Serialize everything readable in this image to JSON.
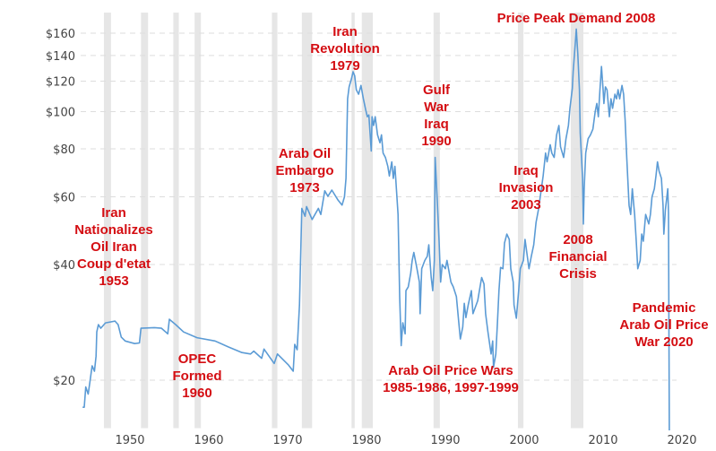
{
  "chart_data": {
    "type": "line",
    "title": "",
    "xlabel": "",
    "ylabel": "",
    "y_scale": "log",
    "xlim": [
      1943,
      2023
    ],
    "ylim": [
      15,
      181
    ],
    "grid": {
      "y": true,
      "x": false,
      "style": "dashed"
    },
    "x_ticks": [
      1950,
      1960,
      1970,
      1980,
      1990,
      2000,
      2010,
      2020
    ],
    "x_tick_labels": [
      "1950",
      "1960",
      "1970",
      "1980",
      "1990",
      "2000",
      "2010",
      "2020"
    ],
    "y_ticks": [
      20,
      40,
      60,
      80,
      100,
      120,
      140,
      160
    ],
    "y_tick_labels": [
      "$20",
      "$40",
      "$60",
      "$80",
      "$100",
      "$120",
      "$140",
      "$160"
    ],
    "colors": {
      "line": "#5b9bd5",
      "recession": "#e6e6e6",
      "annotation": "#d40d12",
      "grid": "#dddddd"
    },
    "recession_bands": [
      [
        1946.7,
        1947.6
      ],
      [
        1951.4,
        1952.3
      ],
      [
        1955.5,
        1956.2
      ],
      [
        1958.2,
        1959.0
      ],
      [
        1968.0,
        1968.7
      ],
      [
        1971.8,
        1973.1
      ],
      [
        1978.1,
        1978.5
      ],
      [
        1979.4,
        1980.8
      ],
      [
        1988.5,
        1989.3
      ],
      [
        1999.2,
        1999.9
      ],
      [
        2005.9,
        2007.5
      ]
    ],
    "series": [
      {
        "x": [
          1944.0,
          1944.2,
          1944.4,
          1944.7,
          1944.9,
          1945.2,
          1945.5,
          1945.7,
          1945.8,
          1946.0,
          1946.3,
          1946.9,
          1948.1,
          1948.5,
          1948.9,
          1949.4,
          1950.6,
          1951.2,
          1951.4,
          1953.1,
          1954.0,
          1954.8,
          1955.0,
          1955.8,
          1956.8,
          1958.5,
          1960.8,
          1962.5,
          1964.2,
          1965.3,
          1965.7,
          1966.7,
          1967.0,
          1968.3,
          1968.7,
          1970.1,
          1970.7,
          1970.9,
          1971.2,
          1971.5,
          1971.8,
          1972.2,
          1972.4,
          1973.1,
          1973.9,
          1974.2,
          1974.7,
          1975.1,
          1975.6,
          1976.4,
          1976.9,
          1977.2,
          1977.4,
          1977.6,
          1977.8,
          1978.1,
          1978.3,
          1978.5,
          1978.7,
          1979.0,
          1979.3,
          1979.6,
          1979.9,
          1980.1,
          1980.3,
          1980.6,
          1980.7,
          1980.9,
          1981.1,
          1981.4,
          1981.7,
          1981.9,
          1982.1,
          1982.4,
          1982.7,
          1982.9,
          1983.2,
          1983.4,
          1983.6,
          1983.7,
          1984.0,
          1984.2,
          1984.4,
          1984.6,
          1984.9,
          1985.0,
          1985.3,
          1985.6,
          1985.8,
          1986.0,
          1986.4,
          1986.7,
          1986.8,
          1987.0,
          1987.4,
          1987.7,
          1987.9,
          1988.2,
          1988.4,
          1988.6,
          1988.7,
          1989.0,
          1989.2,
          1989.4,
          1989.6,
          1990.0,
          1990.2,
          1990.7,
          1991.0,
          1991.4,
          1991.7,
          1991.9,
          1992.2,
          1992.4,
          1992.6,
          1992.9,
          1993.3,
          1993.5,
          1993.7,
          1994.1,
          1994.4,
          1994.6,
          1994.9,
          1995.1,
          1995.4,
          1995.8,
          1996.0,
          1996.1,
          1996.4,
          1996.6,
          1996.8,
          1997.0,
          1997.3,
          1997.5,
          1997.8,
          1998.1,
          1998.3,
          1998.6,
          1998.7,
          1999.0,
          1999.3,
          1999.5,
          1999.9,
          2000.1,
          2000.6,
          2000.9,
          2001.2,
          2001.5,
          2001.8,
          2002.1,
          2002.4,
          2002.7,
          2002.9,
          2003.3,
          2003.5,
          2003.8,
          2004.1,
          2004.4,
          2004.6,
          2005.0,
          2005.3,
          2005.6,
          2005.8,
          2006.1,
          2006.2,
          2006.5,
          2006.6,
          2006.8,
          2007.0,
          2007.1,
          2007.4,
          2007.5,
          2007.6,
          2007.8,
          2008.1,
          2008.4,
          2008.7,
          2009.0,
          2009.2,
          2009.4,
          2009.6,
          2009.8,
          2010.0,
          2010.1,
          2010.3,
          2010.5,
          2010.8,
          2011.0,
          2011.2,
          2011.5,
          2011.7,
          2011.9,
          2012.1,
          2012.4,
          2012.6,
          2012.8,
          2013.0,
          2013.3,
          2013.5,
          2013.7,
          2014.0,
          2014.2,
          2014.4,
          2014.7,
          2014.9,
          2015.1,
          2015.4,
          2015.8,
          2016.0,
          2016.2,
          2016.5,
          2016.7,
          2016.9,
          2017.1,
          2017.4,
          2017.6,
          2017.7,
          2017.9,
          2018.2,
          2018.3,
          2018.4
        ],
        "y": [
          17.0,
          17.0,
          19.2,
          18.4,
          19.6,
          21.8,
          21.1,
          23.1,
          26.7,
          27.9,
          27.3,
          28.2,
          28.5,
          27.9,
          25.9,
          25.3,
          24.9,
          25.0,
          27.3,
          27.4,
          27.3,
          26.4,
          28.8,
          27.9,
          26.7,
          25.8,
          25.3,
          24.4,
          23.6,
          23.4,
          23.8,
          22.8,
          24.1,
          22.1,
          23.4,
          21.9,
          21.1,
          24.8,
          24.0,
          31.4,
          56.0,
          53.4,
          56.6,
          52.4,
          56.0,
          54.0,
          62.2,
          60.2,
          62.5,
          58.8,
          57.1,
          60.0,
          67,
          108,
          116,
          122,
          127,
          124,
          114,
          111,
          117,
          108,
          101,
          97,
          98,
          79,
          97,
          92,
          97,
          87,
          83,
          87,
          78,
          76,
          72,
          68,
          74,
          67,
          72,
          67,
          54,
          33,
          24.6,
          28.2,
          26.4,
          34.2,
          35,
          38,
          41,
          43,
          39,
          36,
          29.8,
          39,
          41,
          42,
          45,
          37,
          34.2,
          41,
          76,
          57,
          46,
          36,
          40,
          39,
          41,
          36,
          35,
          33,
          28.2,
          25.6,
          27.5,
          31.7,
          29.1,
          31.4,
          34.2,
          29.8,
          30.6,
          32.2,
          35,
          37,
          35.6,
          29.8,
          26.7,
          23.4,
          25.3,
          21.6,
          23.4,
          28.2,
          34.2,
          39.3,
          39,
          45.5,
          48,
          46.5,
          39,
          36,
          31.4,
          29,
          34.2,
          39,
          41,
          46.5,
          39,
          42,
          45,
          51.5,
          55.5,
          61.5,
          68,
          78,
          74,
          82,
          78,
          76,
          87,
          92,
          81,
          76,
          85,
          92,
          102,
          115,
          127,
          153,
          164,
          141,
          114,
          88,
          67,
          51,
          63,
          78,
          85,
          87,
          90,
          100,
          105,
          97,
          114,
          131,
          114,
          105,
          116,
          114,
          97,
          108,
          102,
          111,
          108,
          114,
          108,
          117,
          111,
          95,
          76,
          57,
          54,
          63,
          54,
          46,
          39,
          41,
          48,
          46,
          54,
          51,
          54,
          60,
          63,
          68,
          74,
          70,
          67,
          57,
          48,
          55.5,
          63,
          54.5,
          14.8
        ]
      }
    ],
    "annotations": [
      {
        "lines": [
          "Iran",
          "Nationalizes",
          "Oil Iran",
          "Coup d'etat",
          "1953"
        ]
      },
      {
        "lines": [
          "OPEC",
          "Formed",
          "1960"
        ]
      },
      {
        "lines": [
          "Arab Oil",
          "Embargo",
          "1973"
        ]
      },
      {
        "lines": [
          "Iran",
          "Revolution",
          "1979"
        ]
      },
      {
        "lines": [
          "Gulf",
          "War",
          "Iraq",
          "1990"
        ]
      },
      {
        "lines": [
          "Price Peak Demand 2008"
        ]
      },
      {
        "lines": [
          "Iraq",
          "Invasion",
          "2003"
        ]
      },
      {
        "lines": [
          "2008",
          "Financial",
          "Crisis"
        ]
      },
      {
        "lines": [
          "Pandemic",
          "Arab Oil Price",
          "War 2020"
        ]
      },
      {
        "lines": [
          "Arab Oil Price Wars",
          "1985-1986, 1997-1999"
        ]
      }
    ]
  }
}
